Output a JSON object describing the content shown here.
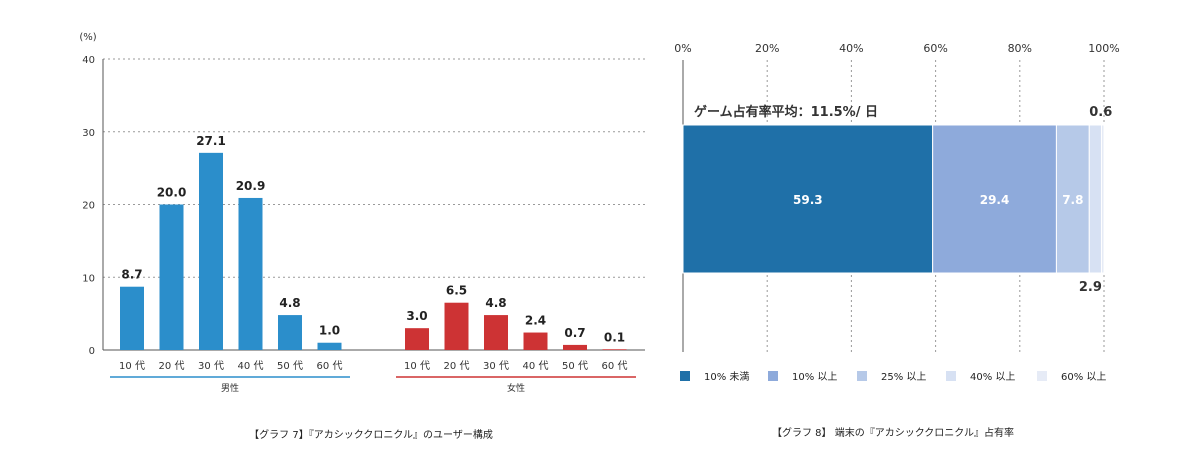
{
  "chart_data": [
    {
      "type": "bar",
      "title": "【グラフ 7】『アカシッククロニクル』のユーザー構成",
      "y_unit": "(%)",
      "ylim": [
        0,
        40
      ],
      "yticks": [
        "0",
        "10",
        "20",
        "30",
        "40"
      ],
      "grid": true,
      "groups": [
        {
          "name": "男性",
          "categories": [
            "10 代",
            "20 代",
            "30 代",
            "40 代",
            "50 代",
            "60 代"
          ],
          "values": [
            8.7,
            20.0,
            27.1,
            20.9,
            4.8,
            1.0
          ],
          "labels": [
            "8.7",
            "20.0",
            "27.1",
            "20.9",
            "4.8",
            "1.0"
          ],
          "color": "#2b8ecb"
        },
        {
          "name": "女性",
          "categories": [
            "10 代",
            "20 代",
            "30 代",
            "40 代",
            "50 代",
            "60 代"
          ],
          "values": [
            3.0,
            6.5,
            4.8,
            2.4,
            0.7,
            0.1
          ],
          "labels": [
            "3.0",
            "6.5",
            "4.8",
            "2.4",
            "0.7",
            "0.1"
          ],
          "color": "#cd3334"
        }
      ]
    },
    {
      "type": "bar",
      "orientation": "horizontal",
      "stacked": true,
      "title": "【グラフ 8】 端末の『アカシッククロニクル』占有率",
      "annotation": "ゲーム占有率平均：11.5%/ 日",
      "xlim": [
        0,
        100
      ],
      "xticks": [
        "0%",
        "20%",
        "40%",
        "60%",
        "80%",
        "100%"
      ],
      "grid": true,
      "legend_position": "bottom",
      "series": [
        {
          "name": "10% 未満",
          "value": 59.3,
          "label": "59.3",
          "color": "#1f70a8"
        },
        {
          "name": "10% 以上",
          "value": 29.4,
          "label": "29.4",
          "color": "#8eaadb"
        },
        {
          "name": "25% 以上",
          "value": 7.8,
          "label": "7.8",
          "color": "#b6c9e8"
        },
        {
          "name": "40% 以上",
          "value": 2.9,
          "label": "2.9",
          "color": "#d7e1f3"
        },
        {
          "name": "60% 以上",
          "value": 0.6,
          "label": "0.6",
          "color": "#e6ebf6"
        }
      ]
    }
  ]
}
